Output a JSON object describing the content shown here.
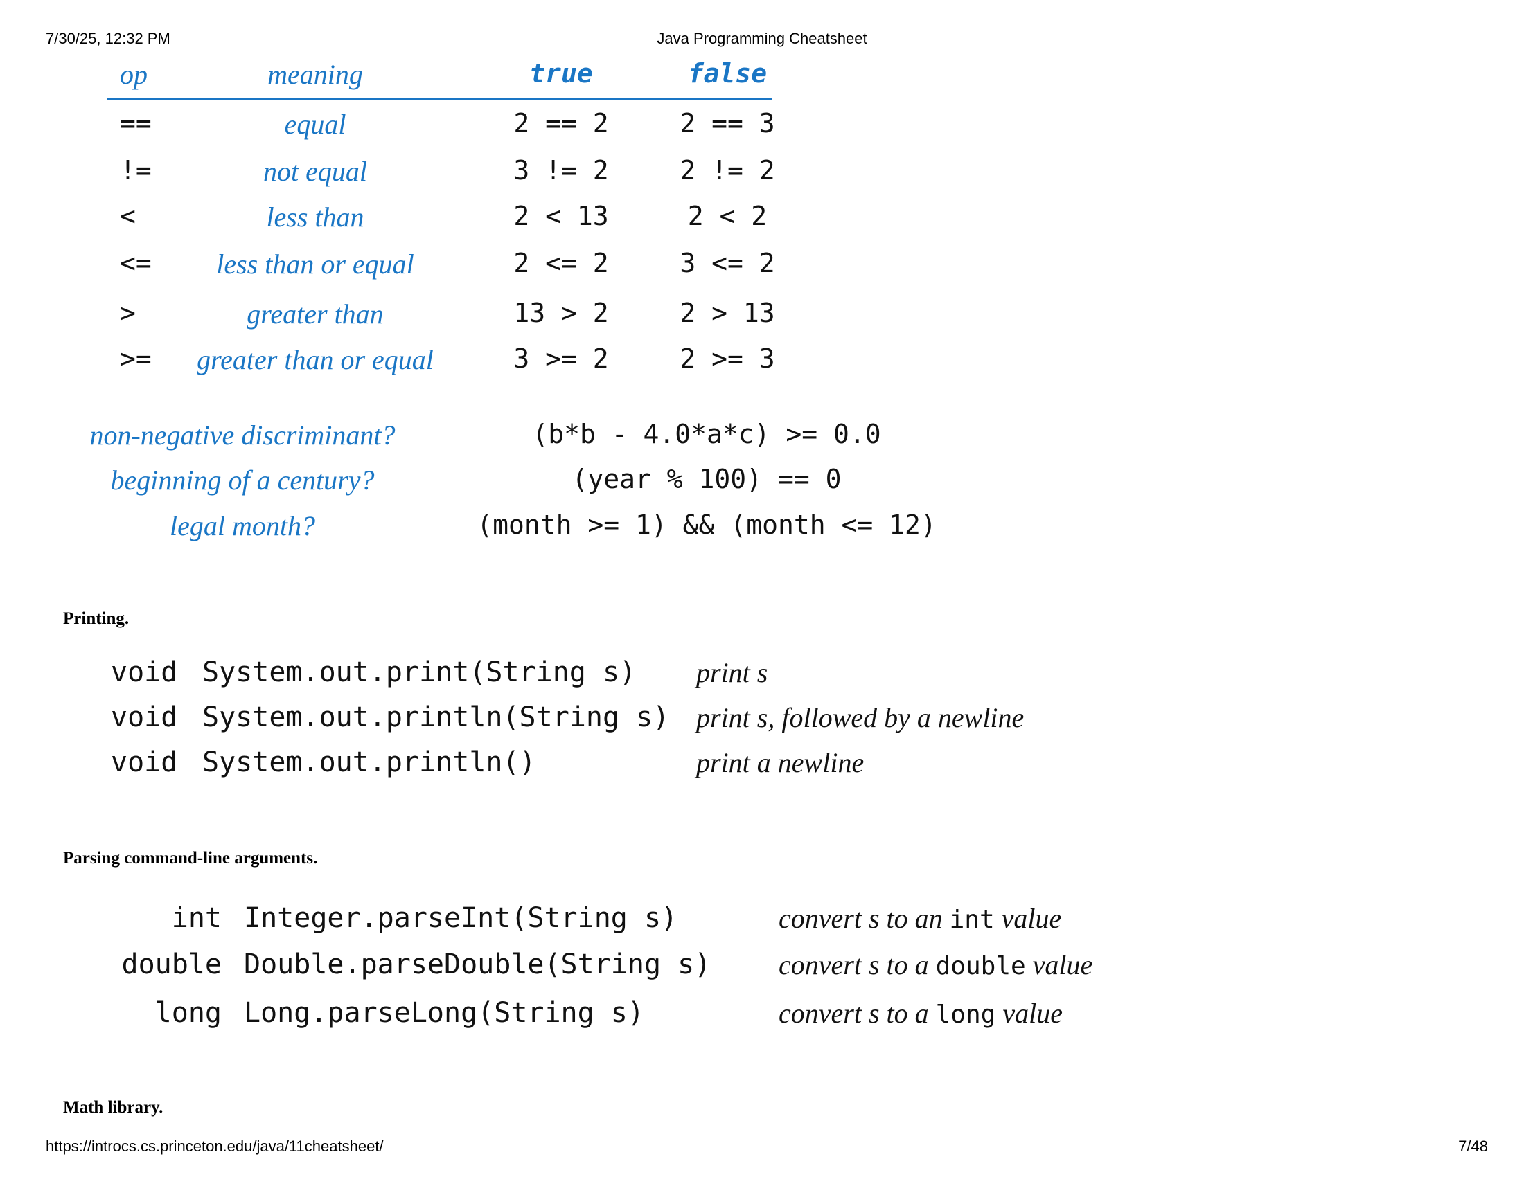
{
  "header": {
    "datetime": "7/30/25, 12:32 PM",
    "title": "Java Programming Cheatsheet"
  },
  "comparison_table": {
    "headers": {
      "op": "op",
      "meaning": "meaning",
      "true": "true",
      "false": "false"
    },
    "rows": [
      {
        "op": "==",
        "meaning": "equal",
        "true_ex": "2 == 2",
        "false_ex": "2 == 3"
      },
      {
        "op": "!=",
        "meaning": "not equal",
        "true_ex": "3 != 2",
        "false_ex": "2 != 2"
      },
      {
        "op": "<",
        "meaning": "less than",
        "true_ex": "2 < 13",
        "false_ex": "2 < 2"
      },
      {
        "op": "<=",
        "meaning": "less than or equal",
        "true_ex": "2 <= 2",
        "false_ex": "3 <= 2"
      },
      {
        "op": ">",
        "meaning": "greater than",
        "true_ex": "13 > 2",
        "false_ex": "2 > 13"
      },
      {
        "op": ">=",
        "meaning": "greater than or equal",
        "true_ex": "3 >= 2",
        "false_ex": "2 >= 3"
      }
    ]
  },
  "examples": [
    {
      "question": "non-negative discriminant?",
      "expr": "(b*b - 4.0*a*c) >= 0.0"
    },
    {
      "question": "beginning of a century?",
      "expr": "(year % 100) == 0"
    },
    {
      "question": "legal month?",
      "expr": "(month >= 1) && (month <= 12)"
    }
  ],
  "printing": {
    "title": "Printing.",
    "rows": [
      {
        "ret": "void",
        "sig": "System.out.print(String s)",
        "desc": "print s"
      },
      {
        "ret": "void",
        "sig": "System.out.println(String s)",
        "desc": "print s, followed by a newline"
      },
      {
        "ret": "void",
        "sig": "System.out.println()",
        "desc": "print a newline"
      }
    ]
  },
  "parsing": {
    "title": "Parsing command-line arguments.",
    "rows": [
      {
        "ret": "int",
        "sig": "Integer.parseInt(String s)",
        "desc_pre": "convert s to an ",
        "desc_code": "int",
        "desc_post": " value"
      },
      {
        "ret": "double",
        "sig": "Double.parseDouble(String s)",
        "desc_pre": "convert s to a ",
        "desc_code": "double",
        "desc_post": " value"
      },
      {
        "ret": "long",
        "sig": "Long.parseLong(String s)",
        "desc_pre": "convert s to a ",
        "desc_code": "long",
        "desc_post": " value"
      }
    ]
  },
  "math": {
    "title": "Math library."
  },
  "footer": {
    "url": "https://introcs.cs.princeton.edu/java/11cheatsheet/",
    "page": "7/48"
  }
}
